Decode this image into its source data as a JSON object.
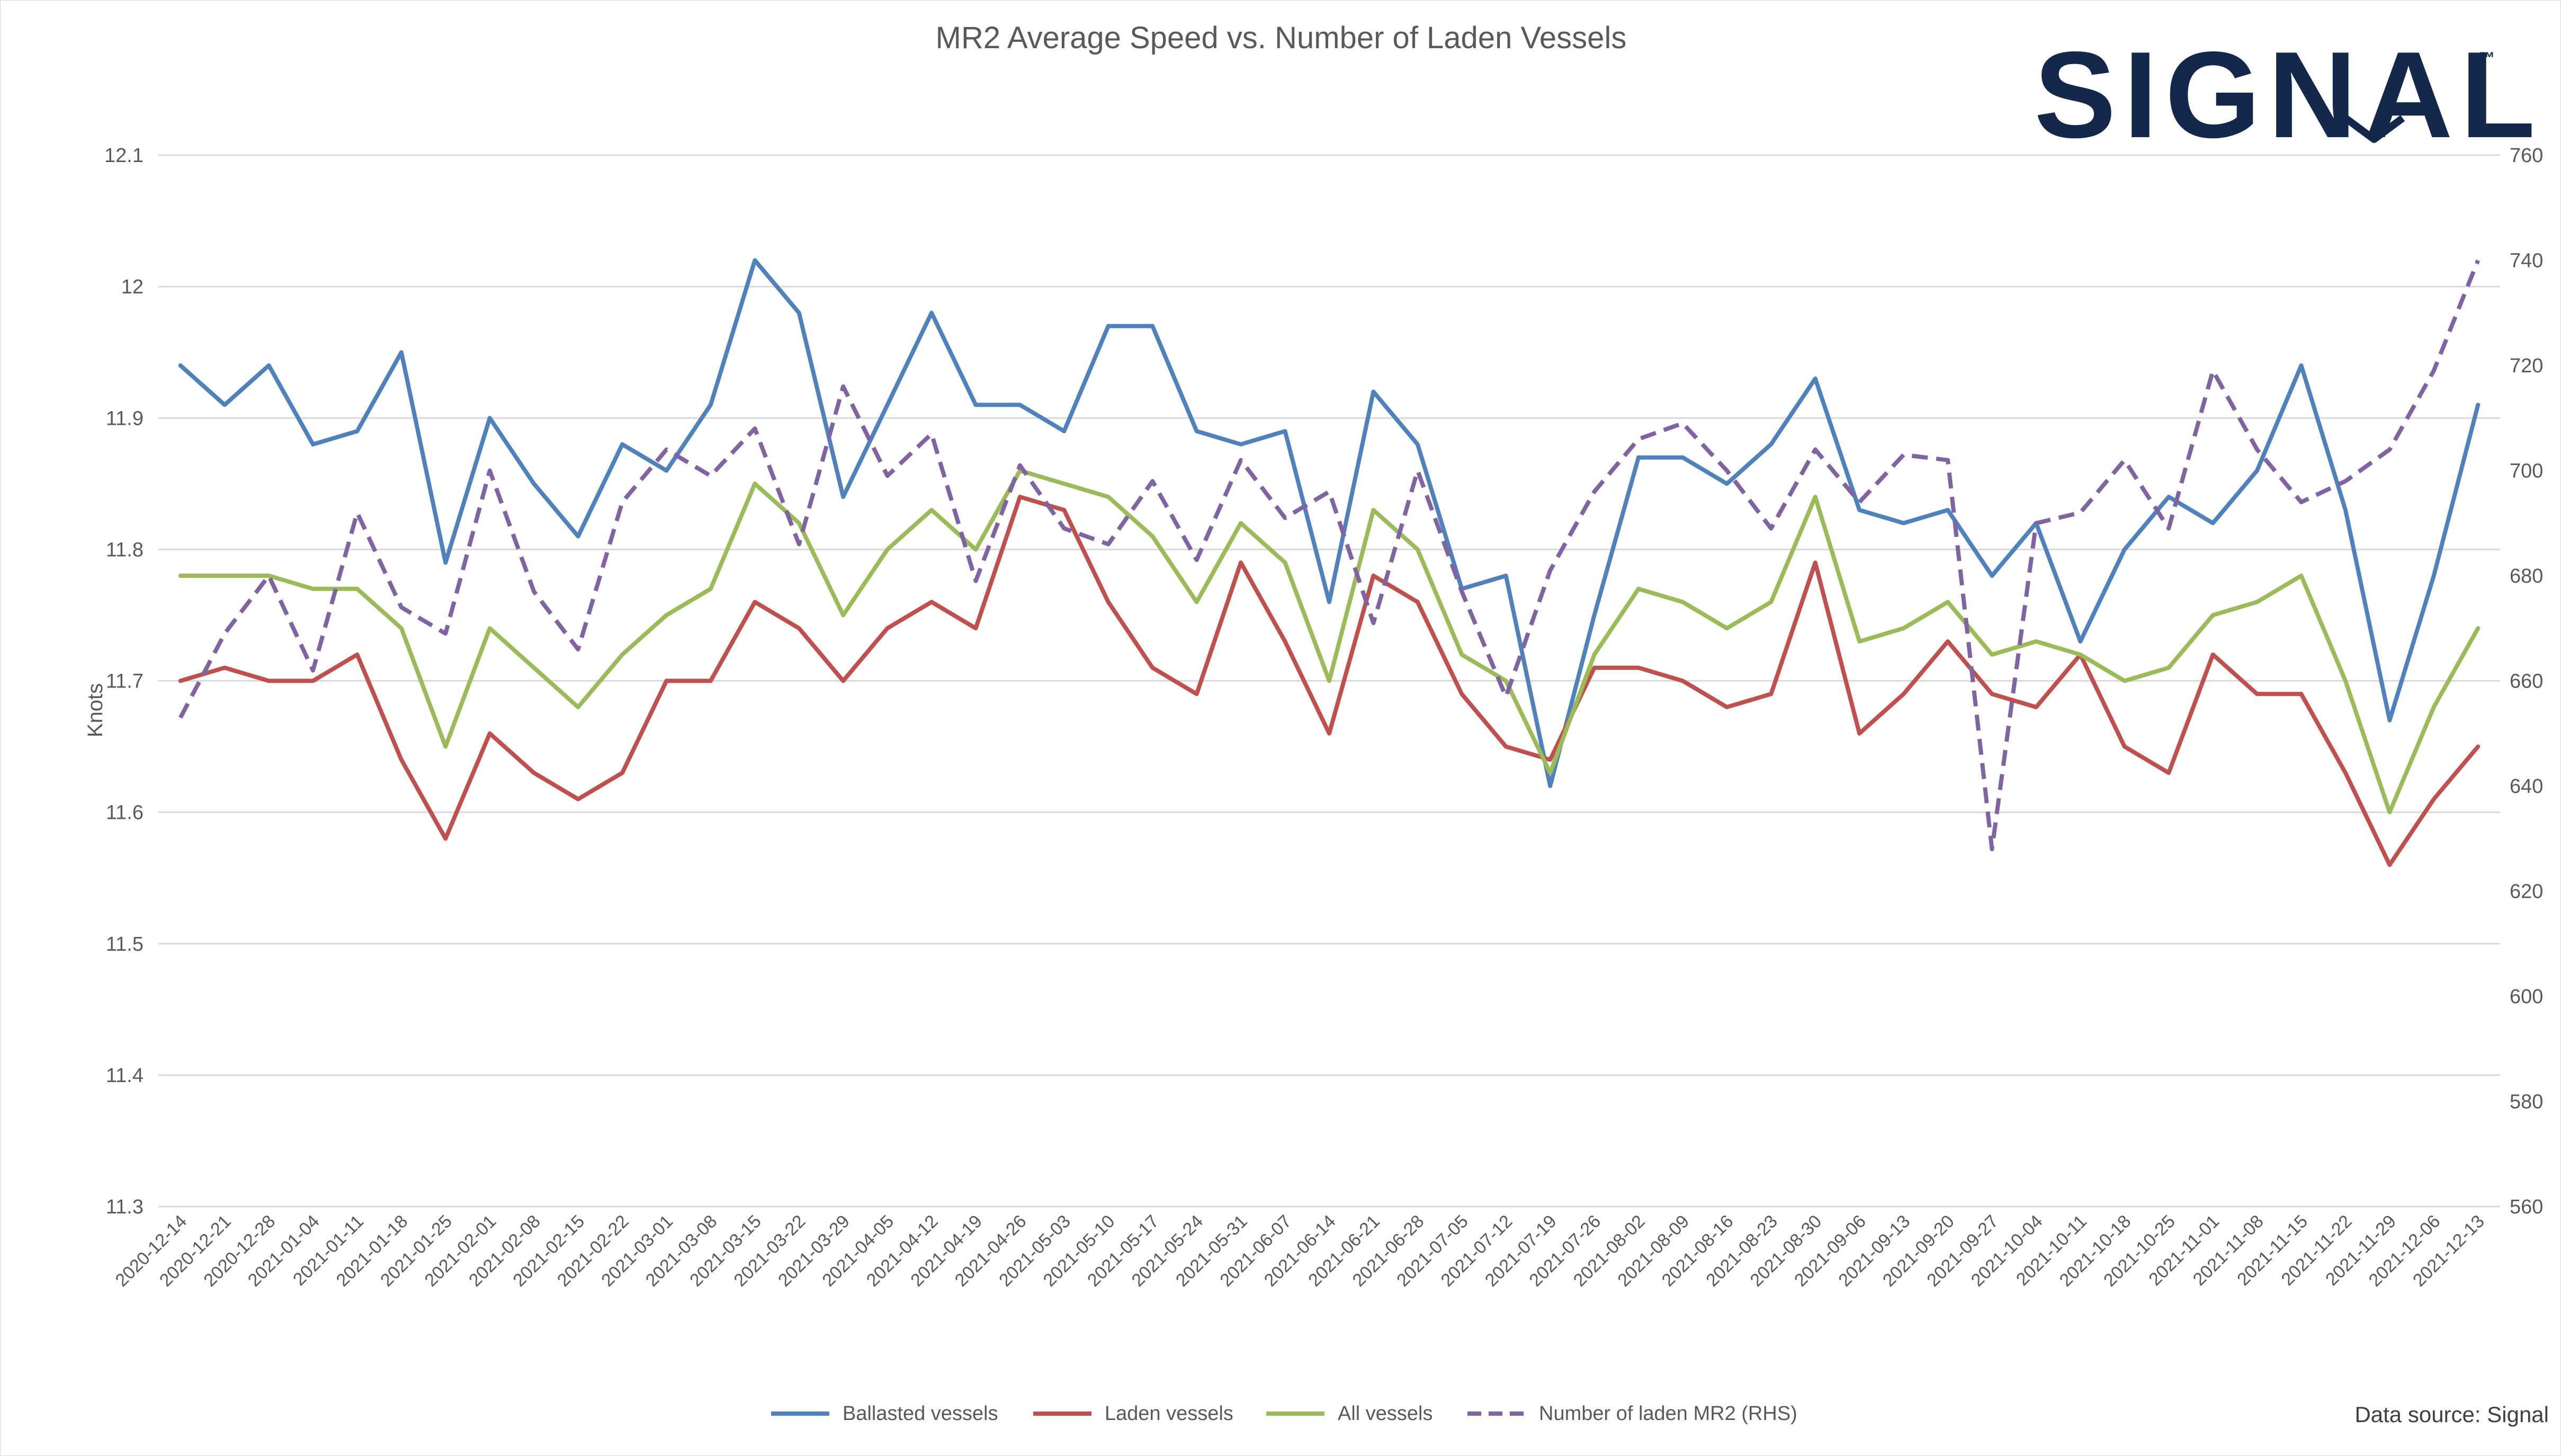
{
  "chart_data": {
    "type": "line",
    "title": "MR2 Average Speed vs. Number of Laden Vessels",
    "ylabel": "Knots",
    "ylim": [
      11.3,
      12.1
    ],
    "yticks": [
      "11.3",
      "11.4",
      "11.5",
      "11.6",
      "11.7",
      "11.8",
      "11.9",
      "12",
      "12.1"
    ],
    "y2lim": [
      560,
      760
    ],
    "y2ticks": [
      "560",
      "580",
      "600",
      "620",
      "640",
      "660",
      "680",
      "700",
      "720",
      "740",
      "760"
    ],
    "grid": true,
    "legend_position": "bottom",
    "categories": [
      "2020-12-14",
      "2020-12-21",
      "2020-12-28",
      "2021-01-04",
      "2021-01-11",
      "2021-01-18",
      "2021-01-25",
      "2021-02-01",
      "2021-02-08",
      "2021-02-15",
      "2021-02-22",
      "2021-03-01",
      "2021-03-08",
      "2021-03-15",
      "2021-03-22",
      "2021-03-29",
      "2021-04-05",
      "2021-04-12",
      "2021-04-19",
      "2021-04-26",
      "2021-05-03",
      "2021-05-10",
      "2021-05-17",
      "2021-05-24",
      "2021-05-31",
      "2021-06-07",
      "2021-06-14",
      "2021-06-21",
      "2021-06-28",
      "2021-07-05",
      "2021-07-12",
      "2021-07-19",
      "2021-07-26",
      "2021-08-02",
      "2021-08-09",
      "2021-08-16",
      "2021-08-23",
      "2021-08-30",
      "2021-09-06",
      "2021-09-13",
      "2021-09-20",
      "2021-09-27",
      "2021-10-04",
      "2021-10-11",
      "2021-10-18",
      "2021-10-25",
      "2021-11-01",
      "2021-11-08",
      "2021-11-15",
      "2021-11-22",
      "2021-11-29",
      "2021-12-06",
      "2021-12-13"
    ],
    "series": [
      {
        "name": "Ballasted vessels",
        "color": "#4f81bd",
        "axis": "left",
        "dash": false,
        "values": [
          11.94,
          11.91,
          11.94,
          11.88,
          11.89,
          11.95,
          11.79,
          11.9,
          11.85,
          11.81,
          11.88,
          11.86,
          11.91,
          12.02,
          11.98,
          11.84,
          11.91,
          11.98,
          11.91,
          11.91,
          11.89,
          11.97,
          11.97,
          11.89,
          11.88,
          11.89,
          11.76,
          11.92,
          11.88,
          11.77,
          11.78,
          11.62,
          11.75,
          11.87,
          11.87,
          11.85,
          11.88,
          11.93,
          11.83,
          11.82,
          11.83,
          11.78,
          11.82,
          11.73,
          11.8,
          11.84,
          11.82,
          11.86,
          11.94,
          11.83,
          11.67,
          11.78,
          11.91
        ]
      },
      {
        "name": "Laden vessels",
        "color": "#c0504d",
        "axis": "left",
        "dash": false,
        "values": [
          11.7,
          11.71,
          11.7,
          11.7,
          11.72,
          11.64,
          11.58,
          11.66,
          11.63,
          11.61,
          11.63,
          11.7,
          11.7,
          11.76,
          11.74,
          11.7,
          11.74,
          11.76,
          11.74,
          11.84,
          11.83,
          11.76,
          11.71,
          11.69,
          11.79,
          11.73,
          11.66,
          11.78,
          11.76,
          11.69,
          11.65,
          11.64,
          11.71,
          11.71,
          11.7,
          11.68,
          11.69,
          11.79,
          11.66,
          11.69,
          11.73,
          11.69,
          11.68,
          11.72,
          11.65,
          11.63,
          11.72,
          11.69,
          11.69,
          11.63,
          11.56,
          11.61,
          11.65
        ]
      },
      {
        "name": "All vessels",
        "color": "#9bbb59",
        "axis": "left",
        "dash": false,
        "values": [
          11.78,
          11.78,
          11.78,
          11.77,
          11.77,
          11.74,
          11.65,
          11.74,
          11.71,
          11.68,
          11.72,
          11.75,
          11.77,
          11.85,
          11.82,
          11.75,
          11.8,
          11.83,
          11.8,
          11.86,
          11.85,
          11.84,
          11.81,
          11.76,
          11.82,
          11.79,
          11.7,
          11.83,
          11.8,
          11.72,
          11.7,
          11.63,
          11.72,
          11.77,
          11.76,
          11.74,
          11.76,
          11.84,
          11.73,
          11.74,
          11.76,
          11.72,
          11.73,
          11.72,
          11.7,
          11.71,
          11.75,
          11.76,
          11.78,
          11.7,
          11.6,
          11.68,
          11.74
        ]
      },
      {
        "name": "Number of laden MR2 (RHS)",
        "color": "#8064a2",
        "axis": "right",
        "dash": true,
        "values": [
          653,
          669,
          680,
          662,
          692,
          674,
          669,
          700,
          677,
          666,
          694,
          704,
          699,
          708,
          686,
          716,
          699,
          707,
          679,
          701,
          689,
          686,
          698,
          683,
          702,
          691,
          696,
          671,
          700,
          677,
          657,
          681,
          696,
          706,
          709,
          700,
          689,
          704,
          694,
          703,
          702,
          628,
          690,
          692,
          702,
          689,
          719,
          704,
          694,
          698,
          704,
          719,
          740
        ]
      }
    ]
  },
  "source_text": "Data source: Signal",
  "logo": {
    "text": "SIGNAL",
    "mark": "™",
    "color": "#14284b"
  }
}
